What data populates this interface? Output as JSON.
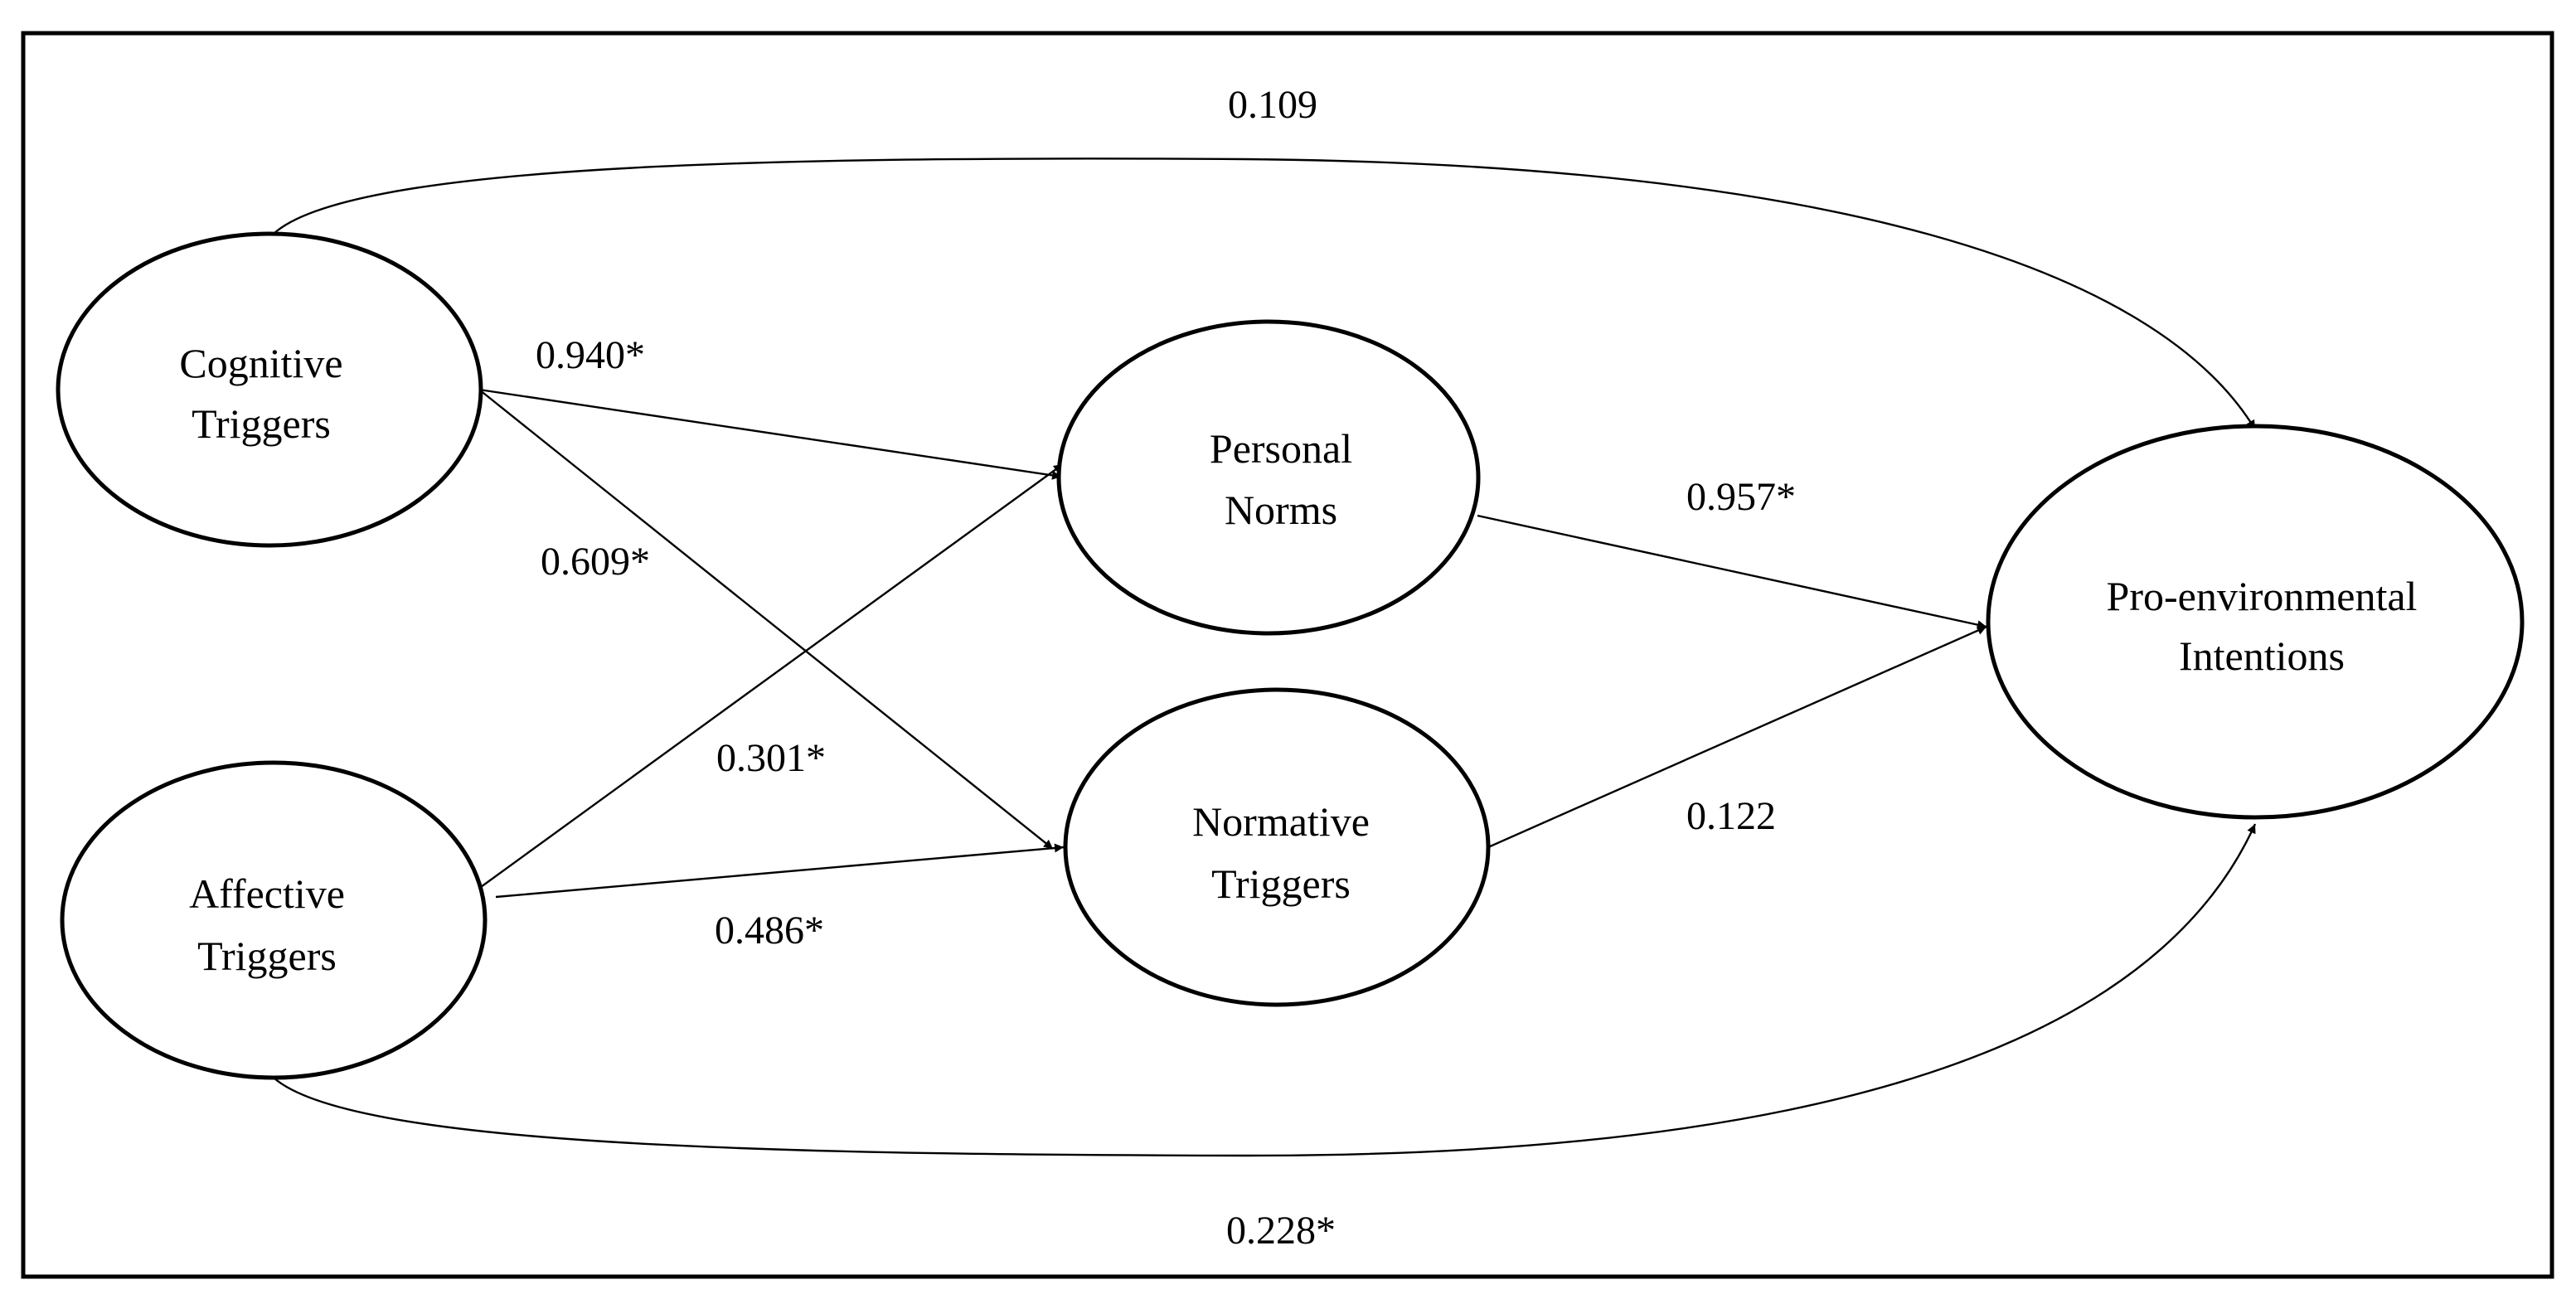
{
  "nodes": {
    "cognitive": [
      "Cognitive",
      "Triggers"
    ],
    "affective": [
      "Affective",
      "Triggers"
    ],
    "personal": [
      "Personal",
      "Norms"
    ],
    "normative": [
      "Normative",
      "Triggers"
    ],
    "pro": [
      "Pro-environmental",
      "Intentions"
    ]
  },
  "edges": {
    "cog_pro": "0.109",
    "cog_per": "0.940*",
    "cog_nor": "0.609*",
    "aff_per": "0.301*",
    "aff_nor": "0.486*",
    "per_pro": "0.957*",
    "nor_pro": "0.122",
    "aff_pro": "0.228*"
  }
}
